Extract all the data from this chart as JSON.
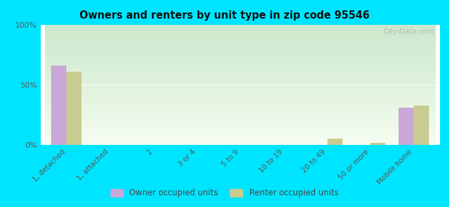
{
  "title": "Owners and renters by unit type in zip code 95546",
  "categories": [
    "1, detached",
    "1, attached",
    "2",
    "3 or 4",
    "5 to 9",
    "10 to 19",
    "20 to 49",
    "50 or more",
    "Mobile home"
  ],
  "owner_values": [
    66,
    0,
    0,
    0,
    0,
    0,
    0,
    0,
    31
  ],
  "renter_values": [
    61,
    0,
    0,
    0,
    0,
    0,
    5,
    2,
    33
  ],
  "owner_color": "#c9a8d9",
  "renter_color": "#c8cc90",
  "background_color": "#00e5ff",
  "grad_top": "#cce8cc",
  "grad_bottom": "#f5fdf0",
  "ylim": [
    0,
    100
  ],
  "yticks": [
    0,
    50,
    100
  ],
  "ytick_labels": [
    "0%",
    "50%",
    "100%"
  ],
  "bar_width": 0.35,
  "legend_owner": "Owner occupied units",
  "legend_renter": "Renter occupied units",
  "watermark": "City-Data.com"
}
